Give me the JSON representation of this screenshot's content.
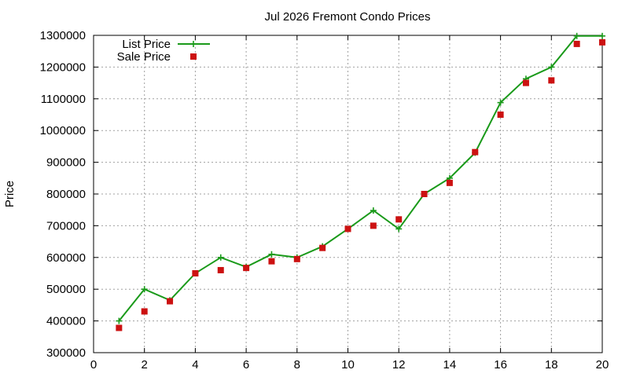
{
  "chart_data": {
    "type": "line",
    "title": "Jul 2026 Fremont Condo Prices",
    "xlabel": "",
    "ylabel": "Price",
    "xlim": [
      0,
      20
    ],
    "ylim": [
      300000,
      1300000
    ],
    "x_ticks": [
      0,
      2,
      4,
      6,
      8,
      10,
      12,
      14,
      16,
      18,
      20
    ],
    "y_ticks": [
      300000,
      400000,
      500000,
      600000,
      700000,
      800000,
      900000,
      1000000,
      1100000,
      1200000,
      1300000
    ],
    "grid": true,
    "legend_position": "top-left",
    "series": [
      {
        "name": "List Price",
        "style": "line-with-plus-markers",
        "color": "#1a9a1a",
        "x": [
          1,
          2,
          3,
          4,
          5,
          6,
          7,
          8,
          9,
          10,
          11,
          12,
          13,
          14,
          15,
          16,
          17,
          18,
          19,
          20
        ],
        "values": [
          400000,
          500000,
          465000,
          550000,
          600000,
          570000,
          610000,
          600000,
          635000,
          690000,
          748000,
          690000,
          800000,
          850000,
          930000,
          1088000,
          1163000,
          1200000,
          1298000,
          1298000
        ]
      },
      {
        "name": "Sale Price",
        "style": "square-markers",
        "color": "#cc1111",
        "x": [
          1,
          2,
          3,
          4,
          5,
          6,
          7,
          8,
          9,
          10,
          11,
          12,
          13,
          14,
          15,
          16,
          17,
          18,
          19,
          20
        ],
        "values": [
          378000,
          430000,
          462000,
          550000,
          560000,
          567000,
          588000,
          595000,
          630000,
          690000,
          700000,
          720000,
          800000,
          835000,
          932000,
          1050000,
          1150000,
          1158000,
          1273000,
          1278000
        ]
      }
    ]
  }
}
